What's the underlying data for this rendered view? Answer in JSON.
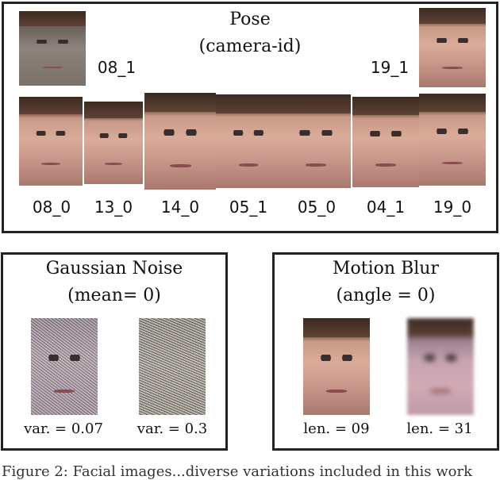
{
  "pose_panel": {
    "title": "Pose",
    "subtitle": "(camera-id)",
    "top_labels": [
      "08_1",
      "19_1"
    ],
    "bottom_labels": [
      "08_0",
      "13_0",
      "14_0",
      "05_1",
      "05_0",
      "04_1",
      "19_0"
    ]
  },
  "noise_panel": {
    "title": "Gaussian Noise",
    "subtitle": "(mean= 0)",
    "labels": [
      "var. = 0.07",
      "var. = 0.3"
    ]
  },
  "blur_panel": {
    "title": "Motion Blur",
    "subtitle": "(angle = 0)",
    "labels": [
      "len. = 09",
      "len. = 31"
    ]
  },
  "caption": "Figure 2: Facial images...diverse variations included in this work"
}
